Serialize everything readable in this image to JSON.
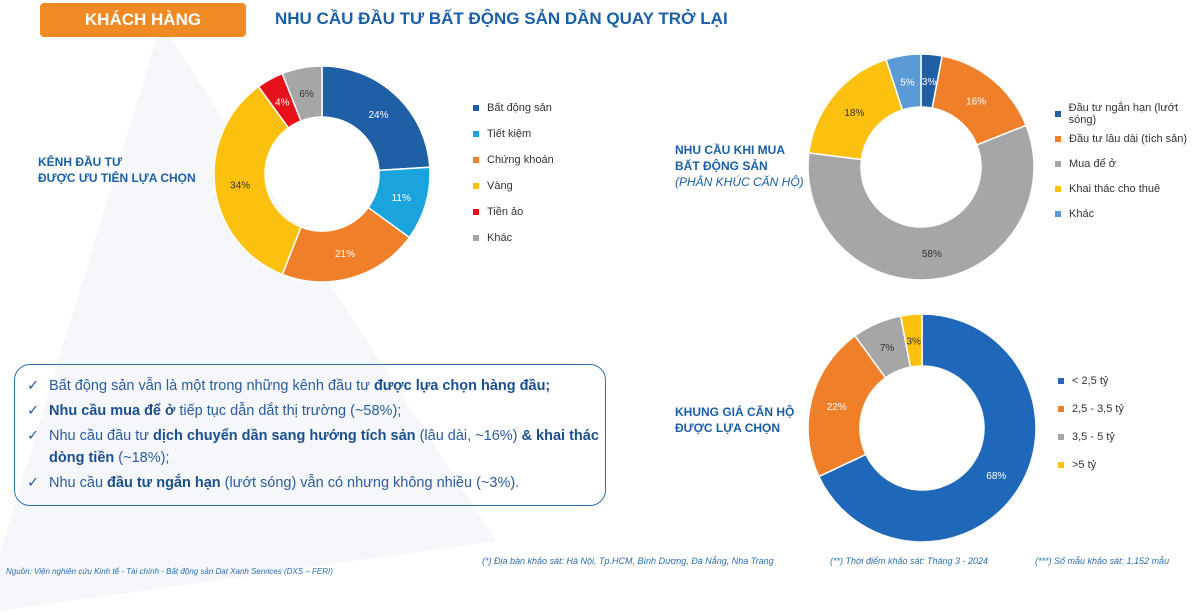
{
  "header": {
    "tag": "KHÁCH HÀNG",
    "title": "NHU CẦU ĐẦU TƯ BẤT ĐỘNG SẢN DẦN QUAY TRỞ LẠI"
  },
  "chart_data": [
    {
      "type": "pie",
      "donut": true,
      "title_lines": [
        "KÊNH ĐẦU TƯ",
        "ĐƯỢC ƯU TIÊN LỰA CHỌN"
      ],
      "categories": [
        "Bất động sản",
        "Tiết kiệm",
        "Chứng khoán",
        "Vàng",
        "Tiền ảo",
        "Khác"
      ],
      "values": [
        24,
        11,
        21,
        34,
        4,
        6
      ],
      "labels": [
        "24%",
        "11%",
        "21%",
        "34%",
        "4%",
        "6%"
      ],
      "colors": [
        "#1f5fa6",
        "#1aa3dc",
        "#f07f2a",
        "#fcc10e",
        "#e8101a",
        "#a6a6a6"
      ],
      "legend": "right"
    },
    {
      "type": "pie",
      "donut": true,
      "title_lines": [
        "NHU CẦU KHI MUA",
        "BẤT ĐỘNG SẢN"
      ],
      "subtitle": "(PHÂN KHÚC CĂN HỘ)",
      "categories": [
        "Đầu tư ngắn hạn (lướt sóng)",
        "Đầu tư lâu dài (tích sản)",
        "Mua để ở",
        "Khai thác cho thuê",
        "Khác"
      ],
      "values": [
        3,
        16,
        58,
        18,
        5
      ],
      "labels": [
        "3%",
        "16%",
        "58%",
        "18%",
        "5%"
      ],
      "colors": [
        "#1f5fa6",
        "#f07f2a",
        "#a6a6a6",
        "#fcc10e",
        "#5b9bd5"
      ],
      "legend": "right"
    },
    {
      "type": "pie",
      "donut": true,
      "title_lines": [
        "KHUNG GIÁ CĂN HỘ",
        "ĐƯỢC LỰA CHỌN"
      ],
      "categories": [
        "< 2,5 tỷ",
        "2,5 - 3,5 tỷ",
        "3,5 - 5 tỷ",
        ">5 tỷ"
      ],
      "values": [
        68,
        22,
        7,
        3
      ],
      "labels": [
        "68%",
        "22%",
        "7%",
        "3%"
      ],
      "colors": [
        "#1f67b8",
        "#f07f2a",
        "#a6a6a6",
        "#fcc10e"
      ],
      "legend": "right"
    }
  ],
  "summary": [
    [
      {
        "t": "Bất động sản vẫn là một trong những kênh đầu tư "
      },
      {
        "t": "được lựa chọn hàng đầu;",
        "b": true
      }
    ],
    [
      {
        "t": "Nhu cầu mua để ở",
        "b": true
      },
      {
        "t": " tiếp tục dẫn dắt thị trường (~58%);"
      }
    ],
    [
      {
        "t": "Nhu cầu đầu tư "
      },
      {
        "t": "dịch chuyển dần sang hướng tích sản",
        "b": true
      },
      {
        "t": " (lâu dài, ~16%) "
      },
      {
        "t": "& khai thác dòng tiền",
        "b": true
      },
      {
        "t": " (~18%);"
      }
    ],
    [
      {
        "t": "Nhu cầu "
      },
      {
        "t": "đầu tư ngắn hạn",
        "b": true
      },
      {
        "t": " (lướt sóng) vẫn có nhưng không nhiều (~3%)."
      }
    ]
  ],
  "footer": {
    "source": "Nguồn: Viện nghiên cứu Kinh tế - Tài chính - Bất động sản Dat Xanh Services (DXS – FERI)",
    "note1": "(*) Địa bàn khảo sát: Hà Nội, Tp.HCM, Bình Dương, Đà Nẵng, Nha Trang",
    "note2": "(**) Thời điểm khảo sát: Tháng 3 - 2024",
    "note3": "(***) Số mẫu khảo sát: 1.152 mẫu"
  }
}
